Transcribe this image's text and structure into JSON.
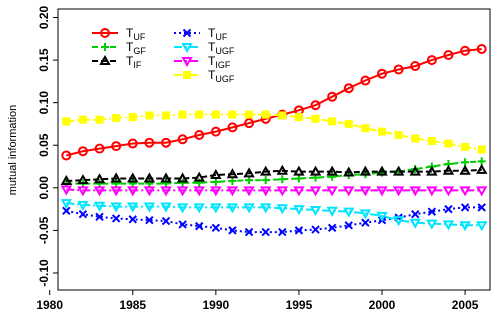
{
  "chart_data": {
    "type": "line",
    "title": "",
    "xlabel": "",
    "ylabel": "mutual information",
    "xlim": [
      1980.5,
      2006.5
    ],
    "ylim": [
      -0.12,
      0.21
    ],
    "x_ticks": [
      1980,
      1985,
      1990,
      1995,
      2000,
      2005
    ],
    "y_ticks": [
      -0.1,
      -0.05,
      0.0,
      0.05,
      0.1,
      0.15,
      0.2
    ],
    "y_tick_labels": [
      "-0.10",
      "-0.05",
      "0.00",
      "0.05",
      "0.10",
      "0.15",
      "0.20"
    ],
    "grid": false,
    "legend_position": "top-left",
    "x": [
      1981,
      1982,
      1983,
      1984,
      1985,
      1986,
      1987,
      1988,
      1989,
      1990,
      1991,
      1992,
      1993,
      1994,
      1995,
      1996,
      1997,
      1998,
      1999,
      2000,
      2001,
      2002,
      2003,
      2004,
      2005,
      2006
    ],
    "series": [
      {
        "name": "T_UF",
        "label_main": "T",
        "label_sub": "UF",
        "color": "#ff0000",
        "marker": "circle",
        "dash": "",
        "values": [
          0.038,
          0.043,
          0.046,
          0.049,
          0.052,
          0.053,
          0.053,
          0.057,
          0.062,
          0.066,
          0.071,
          0.076,
          0.081,
          0.086,
          0.091,
          0.097,
          0.107,
          0.117,
          0.126,
          0.134,
          0.139,
          0.143,
          0.15,
          0.156,
          0.161,
          0.163
        ]
      },
      {
        "name": "T_GF",
        "label_main": "T",
        "label_sub": "GF",
        "color": "#00cc00",
        "marker": "plus",
        "dash": "6,3",
        "values": [
          0.005,
          0.005,
          0.005,
          0.005,
          0.005,
          0.005,
          0.005,
          0.006,
          0.006,
          0.007,
          0.008,
          0.009,
          0.009,
          0.01,
          0.011,
          0.012,
          0.013,
          0.015,
          0.016,
          0.018,
          0.019,
          0.022,
          0.025,
          0.028,
          0.03,
          0.031
        ]
      },
      {
        "name": "T_IF",
        "label_main": "T",
        "label_sub": "IF",
        "color": "#000000",
        "marker": "triangle",
        "dash": "6,3",
        "values": [
          0.008,
          0.009,
          0.01,
          0.011,
          0.011,
          0.011,
          0.011,
          0.011,
          0.012,
          0.015,
          0.016,
          0.017,
          0.019,
          0.02,
          0.019,
          0.019,
          0.019,
          0.018,
          0.019,
          0.019,
          0.019,
          0.019,
          0.019,
          0.02,
          0.02,
          0.021
        ]
      },
      {
        "name": "T_UF",
        "label_main": "T",
        "label_sub": "UF",
        "color": "#0000ff",
        "marker": "x",
        "dash": "2,3",
        "values": [
          -0.027,
          -0.031,
          -0.034,
          -0.036,
          -0.037,
          -0.038,
          -0.039,
          -0.043,
          -0.045,
          -0.047,
          -0.05,
          -0.052,
          -0.052,
          -0.052,
          -0.05,
          -0.049,
          -0.047,
          -0.044,
          -0.041,
          -0.038,
          -0.035,
          -0.031,
          -0.028,
          -0.025,
          -0.023,
          -0.023
        ]
      },
      {
        "name": "T_UGF",
        "label_main": "T",
        "label_sub": "UGF",
        "color": "#00e5ff",
        "marker": "triangle-down",
        "dash": "8,3,2,3",
        "values": [
          -0.018,
          -0.02,
          -0.021,
          -0.022,
          -0.022,
          -0.022,
          -0.022,
          -0.023,
          -0.023,
          -0.023,
          -0.023,
          -0.023,
          -0.023,
          -0.024,
          -0.025,
          -0.026,
          -0.027,
          -0.028,
          -0.03,
          -0.033,
          -0.038,
          -0.041,
          -0.042,
          -0.043,
          -0.044,
          -0.044
        ]
      },
      {
        "name": "T_IGF",
        "label_main": "T",
        "label_sub": "IGF",
        "color": "#ff00ff",
        "marker": "triangle-down",
        "dash": "8,3,2,3",
        "values": [
          -0.002,
          -0.003,
          -0.003,
          -0.003,
          -0.003,
          -0.003,
          -0.003,
          -0.003,
          -0.003,
          -0.003,
          -0.003,
          -0.003,
          -0.003,
          -0.003,
          -0.003,
          -0.003,
          -0.003,
          -0.003,
          -0.003,
          -0.003,
          -0.003,
          -0.003,
          -0.003,
          -0.003,
          -0.003,
          -0.003
        ]
      },
      {
        "name": "T_UGF",
        "label_main": "T",
        "label_sub": "UGF",
        "color": "#ffff00",
        "marker": "square",
        "dash": "8,3,2,3",
        "values": [
          0.078,
          0.08,
          0.08,
          0.082,
          0.083,
          0.085,
          0.085,
          0.086,
          0.086,
          0.086,
          0.086,
          0.086,
          0.086,
          0.085,
          0.083,
          0.081,
          0.078,
          0.075,
          0.07,
          0.066,
          0.062,
          0.058,
          0.055,
          0.052,
          0.048,
          0.045
        ]
      }
    ]
  }
}
